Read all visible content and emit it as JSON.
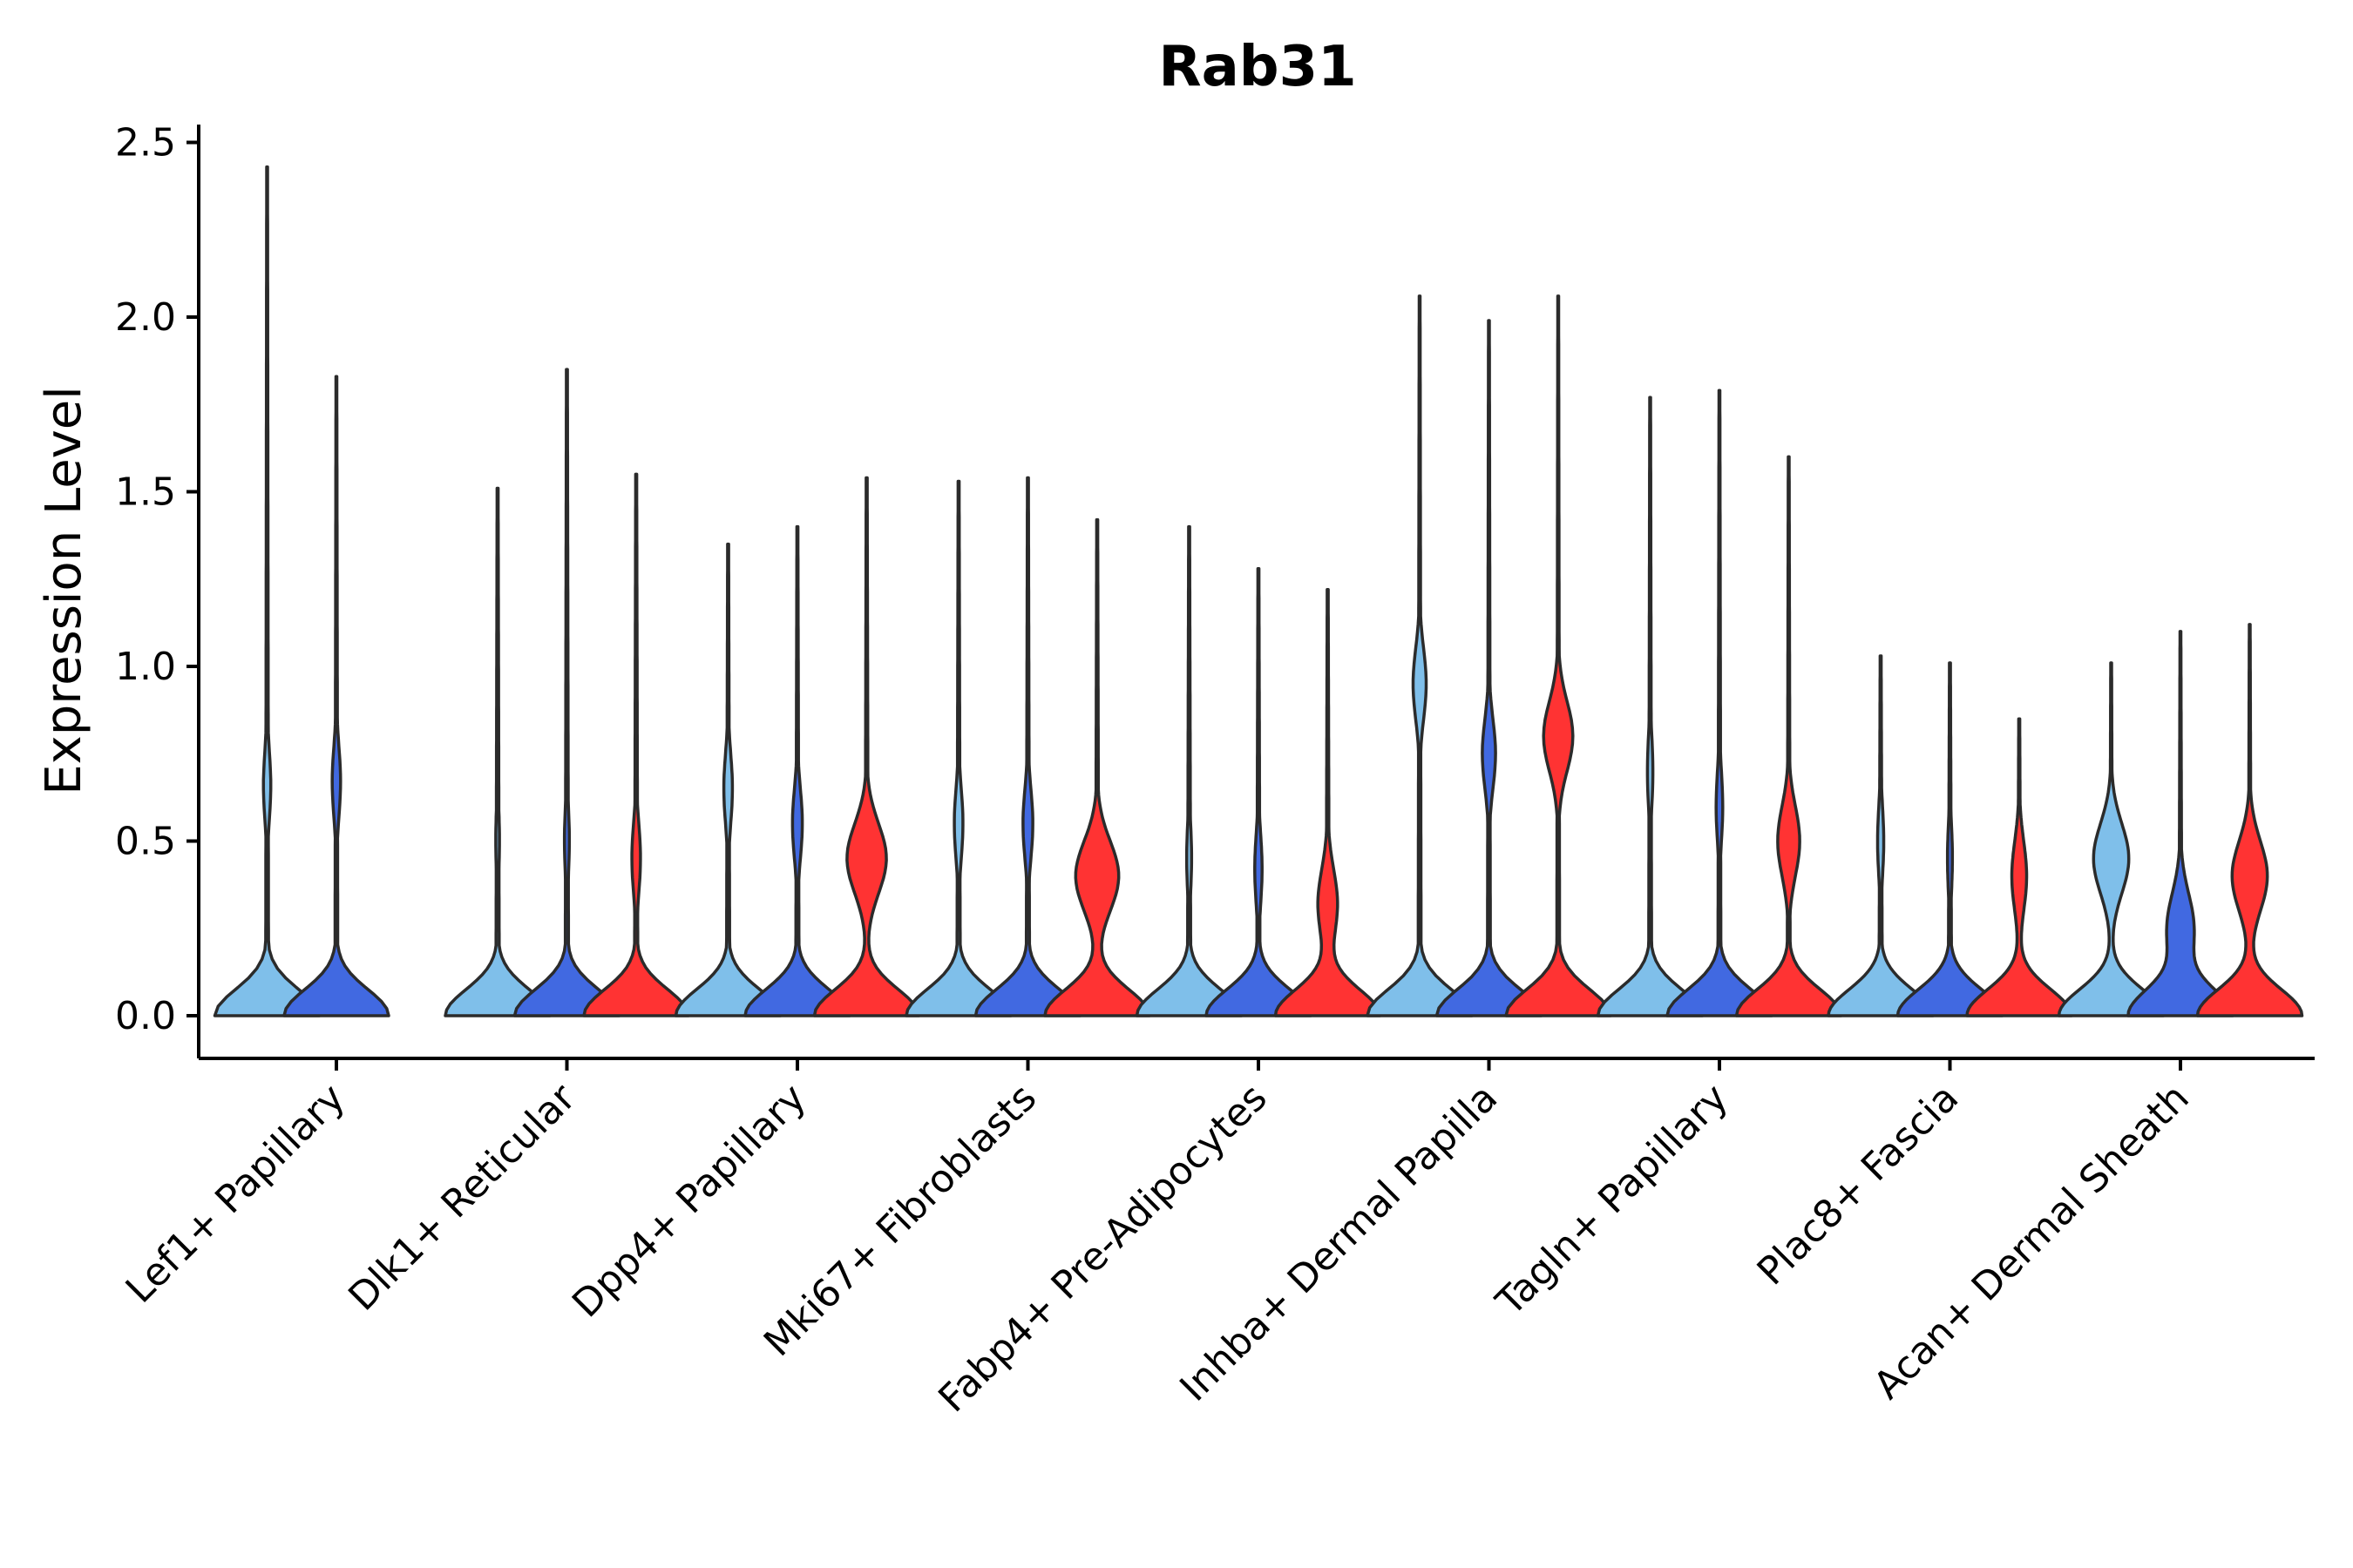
{
  "chart_data": {
    "type": "violin",
    "title": "Rab31",
    "ylabel": "Expression Level",
    "xlabel": "",
    "ylim": [
      -0.12,
      2.6
    ],
    "yticks": [
      0.0,
      0.5,
      1.0,
      1.5,
      2.0,
      2.5
    ],
    "ytick_labels": [
      "0.0",
      "0.5",
      "1.0",
      "1.5",
      "2.0",
      "2.5"
    ],
    "categories": [
      "Lef1+ Papillary",
      "Dlk1+ Reticular",
      "Dpp4+ Papillary",
      "Mki67+ Fibroblasts",
      "Fabp4+ Pre-Adipocytes",
      "Inhba+ Dermal Papilla",
      "Tagln+ Papillary",
      "Plac8+ Fascia",
      "Acan+ Dermal Sheath"
    ],
    "split_colors": [
      "#7fbfea",
      "#4169e1",
      "#ff3333"
    ],
    "violins": [
      [
        {
          "max": 2.43,
          "modes": [
            [
              0.0,
              1.0
            ],
            [
              0.66,
              0.07
            ]
          ]
        },
        {
          "max": 1.83,
          "modes": [
            [
              0.0,
              1.0
            ],
            [
              0.67,
              0.08
            ]
          ]
        },
        null
      ],
      [
        {
          "max": 1.51,
          "modes": [
            [
              0.0,
              0.85
            ],
            [
              0.5,
              0.03
            ]
          ]
        },
        {
          "max": 1.85,
          "modes": [
            [
              0.0,
              0.85
            ],
            [
              0.5,
              0.04
            ]
          ]
        },
        {
          "max": 1.55,
          "modes": [
            [
              0.0,
              0.85
            ],
            [
              0.45,
              0.07
            ]
          ]
        }
      ],
      [
        {
          "max": 1.35,
          "modes": [
            [
              0.0,
              0.85
            ],
            [
              0.65,
              0.07
            ]
          ]
        },
        {
          "max": 1.4,
          "modes": [
            [
              0.0,
              0.85
            ],
            [
              0.55,
              0.08
            ]
          ]
        },
        {
          "max": 1.54,
          "modes": [
            [
              0.0,
              0.85
            ],
            [
              0.45,
              0.32
            ]
          ]
        }
      ],
      [
        {
          "max": 1.53,
          "modes": [
            [
              0.0,
              0.85
            ],
            [
              0.55,
              0.07
            ]
          ]
        },
        {
          "max": 1.54,
          "modes": [
            [
              0.0,
              0.85
            ],
            [
              0.55,
              0.08
            ]
          ]
        },
        {
          "max": 1.42,
          "modes": [
            [
              0.0,
              0.85
            ],
            [
              0.4,
              0.35
            ]
          ]
        }
      ],
      [
        {
          "max": 1.4,
          "modes": [
            [
              0.0,
              0.85
            ],
            [
              0.45,
              0.04
            ]
          ]
        },
        {
          "max": 1.28,
          "modes": [
            [
              0.0,
              0.85
            ],
            [
              0.42,
              0.06
            ]
          ]
        },
        {
          "max": 1.22,
          "modes": [
            [
              0.0,
              0.85
            ],
            [
              0.32,
              0.16
            ]
          ]
        }
      ],
      [
        {
          "max": 2.06,
          "modes": [
            [
              0.0,
              0.95
            ],
            [
              0.95,
              0.12
            ]
          ]
        },
        {
          "max": 1.99,
          "modes": [
            [
              0.0,
              0.95
            ],
            [
              0.75,
              0.12
            ]
          ]
        },
        {
          "max": 2.06,
          "modes": [
            [
              0.0,
              1.0
            ],
            [
              0.8,
              0.28
            ]
          ]
        }
      ],
      [
        {
          "max": 1.77,
          "modes": [
            [
              0.0,
              0.95
            ],
            [
              0.7,
              0.05
            ]
          ]
        },
        {
          "max": 1.79,
          "modes": [
            [
              0.0,
              0.95
            ],
            [
              0.6,
              0.06
            ]
          ]
        },
        {
          "max": 1.6,
          "modes": [
            [
              0.0,
              0.95
            ],
            [
              0.5,
              0.2
            ]
          ]
        }
      ],
      [
        {
          "max": 1.03,
          "modes": [
            [
              0.0,
              0.85
            ],
            [
              0.5,
              0.05
            ]
          ]
        },
        {
          "max": 1.01,
          "modes": [
            [
              0.0,
              0.85
            ],
            [
              0.45,
              0.04
            ]
          ]
        },
        {
          "max": 0.85,
          "modes": [
            [
              0.0,
              0.85
            ],
            [
              0.4,
              0.12
            ]
          ]
        }
      ],
      [
        {
          "max": 1.01,
          "modes": [
            [
              0.0,
              0.95
            ],
            [
              0.45,
              0.32
            ]
          ]
        },
        {
          "max": 1.1,
          "modes": [
            [
              0.0,
              0.95
            ],
            [
              0.25,
              0.25
            ]
          ]
        },
        {
          "max": 1.12,
          "modes": [
            [
              0.0,
              0.95
            ],
            [
              0.4,
              0.32
            ]
          ]
        }
      ]
    ]
  }
}
